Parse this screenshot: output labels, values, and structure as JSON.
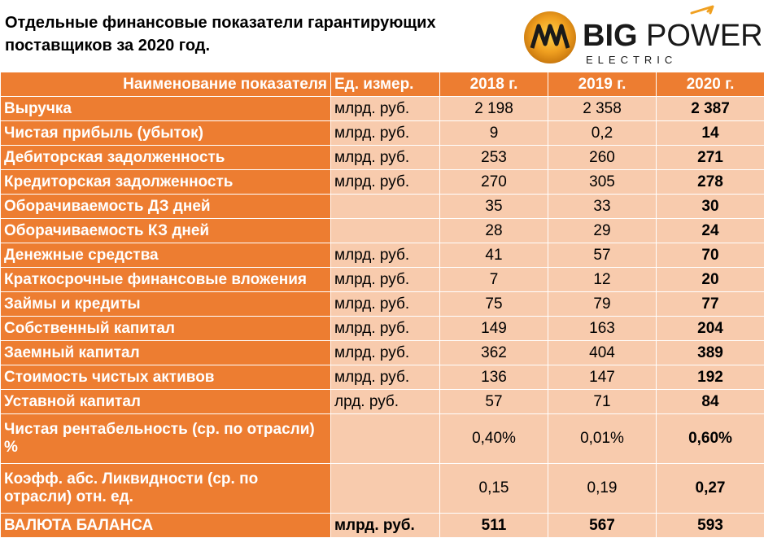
{
  "title": "Отдельные финансовые показатели гарантирующих поставщиков за 2020 год.",
  "logo": {
    "big": "BIG",
    "power": "POWER",
    "electric": "ELECTRIC"
  },
  "table": {
    "headers": [
      "Наименование показателя",
      "Ед. измер.",
      "2018 г.",
      "2019 г.",
      "2020 г."
    ],
    "rows": [
      {
        "name": "Выручка",
        "unit": "млрд. руб.",
        "v2018": "2 198",
        "v2019": "2 358",
        "v2020": "2 387"
      },
      {
        "name": "Чистая прибыль (убыток)",
        "unit": "млрд. руб.",
        "v2018": "9",
        "v2019": "0,2",
        "v2020": "14"
      },
      {
        "name": "Дебиторская задолженность",
        "unit": "млрд. руб.",
        "v2018": "253",
        "v2019": "260",
        "v2020": "271"
      },
      {
        "name": "Кредиторская задолженность",
        "unit": "млрд. руб.",
        "v2018": "270",
        "v2019": "305",
        "v2020": "278"
      },
      {
        "name": "Оборачиваемость ДЗ дней",
        "unit": "",
        "v2018": "35",
        "v2019": "33",
        "v2020": "30"
      },
      {
        "name": "Оборачиваемость КЗ дней",
        "unit": "",
        "v2018": "28",
        "v2019": "29",
        "v2020": "24"
      },
      {
        "name": "Денежные средства",
        "unit": "млрд. руб.",
        "v2018": "41",
        "v2019": "57",
        "v2020": "70"
      },
      {
        "name": "Краткосрочные финансовые вложения",
        "unit": "млрд. руб.",
        "v2018": "7",
        "v2019": "12",
        "v2020": "20"
      },
      {
        "name": "Займы и кредиты",
        "unit": "млрд. руб.",
        "v2018": "75",
        "v2019": "79",
        "v2020": "77"
      },
      {
        "name": "Собственный капитал",
        "unit": "млрд. руб.",
        "v2018": "149",
        "v2019": "163",
        "v2020": "204"
      },
      {
        "name": "Заемный капитал",
        "unit": "млрд. руб.",
        "v2018": "362",
        "v2019": "404",
        "v2020": "389"
      },
      {
        "name": "Стоимость чистых активов",
        "unit": "млрд. руб.",
        "v2018": "136",
        "v2019": "147",
        "v2020": "192"
      },
      {
        "name": "Уставной капитал",
        "unit": "лрд. руб.",
        "v2018": "57",
        "v2019": "71",
        "v2020": "84"
      },
      {
        "name": "Чистая рентабельность (ср. по отрасли) %",
        "unit": "",
        "v2018": "0,40%",
        "v2019": "0,01%",
        "v2020": "0,60%"
      },
      {
        "name": "Коэфф. абс. Ликвидности (ср. по отрасли) отн. ед.",
        "unit": "",
        "v2018": "0,15",
        "v2019": "0,19",
        "v2020": "0,27"
      },
      {
        "name": "ВАЛЮТА БАЛАНСА",
        "unit": "млрд. руб.",
        "v2018": "511",
        "v2019": "567",
        "v2020": "593"
      }
    ]
  },
  "colors": {
    "accent": "#ed7d31",
    "light": "#f8cbad",
    "logo_dark": "#1a1a1a",
    "logo_gold": "#f0a020"
  }
}
